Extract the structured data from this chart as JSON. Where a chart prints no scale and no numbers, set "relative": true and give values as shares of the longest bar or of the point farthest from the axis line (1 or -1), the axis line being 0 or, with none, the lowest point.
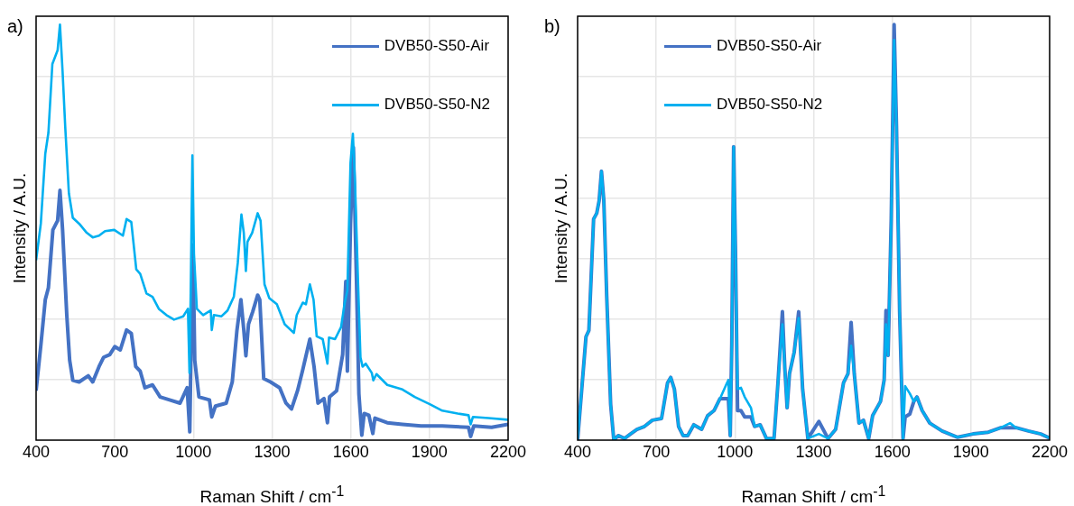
{
  "chart_data": [
    {
      "type": "line",
      "title": "a)",
      "xlabel": "Raman Shift / cm$^{-1}$",
      "ylabel": "Intensity / A.U.",
      "relative": true,
      "xlim": [
        400,
        2200
      ],
      "xticks": [
        400,
        700,
        1000,
        1300,
        1600,
        1900,
        2200
      ],
      "grid": true,
      "legend": "top right",
      "marker": "none",
      "series": [
        {
          "name": "DVB50-S50-Air",
          "color": "#4472c4",
          "x": [
            400,
            418,
            435,
            447,
            464,
            482,
            491,
            501,
            517,
            528,
            540,
            564,
            599,
            616,
            640,
            657,
            681,
            700,
            721,
            745,
            763,
            780,
            797,
            815,
            844,
            873,
            909,
            949,
            976,
            986,
            993,
            998,
            1005,
            1021,
            1061,
            1070,
            1084,
            1125,
            1148,
            1166,
            1181,
            1192,
            1200,
            1210,
            1226,
            1245,
            1253,
            1268,
            1294,
            1329,
            1353,
            1374,
            1397,
            1417,
            1444,
            1460,
            1475,
            1498,
            1511,
            1519,
            1546,
            1569,
            1581,
            1587,
            1599,
            1610,
            1622,
            1631,
            1642,
            1651,
            1669,
            1684,
            1692,
            1739,
            1797,
            1868,
            1949,
            2049,
            2057,
            2069,
            2137,
            2200
          ],
          "values": [
            0.119,
            0.228,
            0.338,
            0.367,
            0.506,
            0.528,
            0.601,
            0.506,
            0.301,
            0.192,
            0.144,
            0.14,
            0.155,
            0.14,
            0.177,
            0.199,
            0.206,
            0.225,
            0.217,
            0.265,
            0.257,
            0.177,
            0.166,
            0.126,
            0.133,
            0.104,
            0.097,
            0.089,
            0.126,
            0.02,
            0.301,
            0.47,
            0.192,
            0.104,
            0.097,
            0.056,
            0.082,
            0.089,
            0.14,
            0.265,
            0.338,
            0.265,
            0.203,
            0.279,
            0.309,
            0.349,
            0.338,
            0.148,
            0.14,
            0.126,
            0.089,
            0.075,
            0.119,
            0.17,
            0.243,
            0.177,
            0.089,
            0.1,
            0.042,
            0.104,
            0.119,
            0.206,
            0.382,
            0.166,
            0.521,
            0.704,
            0.375,
            0.111,
            0.012,
            0.064,
            0.06,
            0.016,
            0.053,
            0.042,
            0.038,
            0.034,
            0.034,
            0.031,
            0.009,
            0.034,
            0.031,
            0.038
          ]
        },
        {
          "name": "DVB50-S50-N2",
          "color": "#00b0f0",
          "x": [
            400,
            418,
            435,
            447,
            462,
            482,
            491,
            501,
            511,
            525,
            540,
            564,
            593,
            616,
            640,
            663,
            698,
            731,
            745,
            763,
            782,
            797,
            821,
            844,
            868,
            897,
            926,
            961,
            979,
            985,
            990,
            996,
            1002,
            1013,
            1037,
            1066,
            1070,
            1078,
            1107,
            1130,
            1154,
            1169,
            1183,
            1192,
            1200,
            1206,
            1224,
            1245,
            1256,
            1271,
            1289,
            1318,
            1348,
            1383,
            1394,
            1417,
            1429,
            1444,
            1458,
            1470,
            1493,
            1511,
            1517,
            1540,
            1563,
            1577,
            1587,
            1599,
            1608,
            1616,
            1628,
            1637,
            1645,
            1657,
            1680,
            1686,
            1698,
            1739,
            1797,
            1844,
            1903,
            1949,
            2008,
            2049,
            2057,
            2066,
            2125,
            2200
          ],
          "values": [
            0.433,
            0.521,
            0.689,
            0.74,
            0.905,
            0.938,
            1,
            0.887,
            0.755,
            0.594,
            0.535,
            0.521,
            0.499,
            0.488,
            0.492,
            0.503,
            0.506,
            0.492,
            0.532,
            0.525,
            0.411,
            0.4,
            0.353,
            0.345,
            0.316,
            0.301,
            0.29,
            0.298,
            0.316,
            0.162,
            0.375,
            0.685,
            0.448,
            0.316,
            0.301,
            0.312,
            0.265,
            0.301,
            0.298,
            0.312,
            0.345,
            0.426,
            0.543,
            0.499,
            0.407,
            0.477,
            0.499,
            0.546,
            0.528,
            0.375,
            0.342,
            0.327,
            0.279,
            0.258,
            0.301,
            0.331,
            0.327,
            0.375,
            0.338,
            0.25,
            0.243,
            0.184,
            0.247,
            0.243,
            0.272,
            0.331,
            0.36,
            0.667,
            0.737,
            0.623,
            0.375,
            0.199,
            0.177,
            0.184,
            0.162,
            0.144,
            0.159,
            0.133,
            0.122,
            0.104,
            0.086,
            0.071,
            0.064,
            0.06,
            0.038,
            0.056,
            0.053,
            0.049
          ]
        }
      ]
    },
    {
      "type": "line",
      "title": "b)",
      "xlabel": "Raman Shift / cm$^{-1}$",
      "ylabel": "Intensity / A.U.",
      "relative": true,
      "xlim": [
        400,
        2200
      ],
      "xticks": [
        400,
        700,
        1000,
        1300,
        1600,
        1900,
        2200
      ],
      "grid": true,
      "legend": "top left",
      "marker": "none",
      "series": [
        {
          "name": "DVB50-S50-Air",
          "color": "#4472c4",
          "x": [
            400,
            432,
            443,
            461,
            473,
            482,
            491,
            500,
            511,
            526,
            538,
            555,
            579,
            602,
            626,
            655,
            685,
            720,
            743,
            755,
            769,
            785,
            802,
            820,
            843,
            873,
            896,
            920,
            943,
            967,
            975,
            982,
            988,
            995,
            1002,
            1010,
            1023,
            1037,
            1061,
            1075,
            1096,
            1120,
            1149,
            1164,
            1181,
            1190,
            1199,
            1208,
            1226,
            1243,
            1258,
            1278,
            1320,
            1355,
            1384,
            1414,
            1431,
            1443,
            1455,
            1473,
            1490,
            1510,
            1525,
            1555,
            1569,
            1576,
            1584,
            1596,
            1607,
            1616,
            1628,
            1641,
            1649,
            1667,
            1682,
            1694,
            1714,
            1743,
            1790,
            1849,
            1908,
            1966,
            2014,
            2049,
            2072,
            2119,
            2166,
            2200
          ],
          "values": [
            0,
            0.249,
            0.264,
            0.532,
            0.546,
            0.576,
            0.647,
            0.576,
            0.346,
            0.086,
            0,
            0.011,
            0.004,
            0.015,
            0.026,
            0.033,
            0.048,
            0.052,
            0.138,
            0.151,
            0.123,
            0.033,
            0.011,
            0.011,
            0.037,
            0.026,
            0.059,
            0.071,
            0.1,
            0.1,
            0.1,
            0.011,
            0.234,
            0.706,
            0.457,
            0.071,
            0.071,
            0.056,
            0.056,
            0.033,
            0.037,
            0.004,
            0.004,
            0.138,
            0.309,
            0.175,
            0.078,
            0.16,
            0.212,
            0.309,
            0.123,
            0.004,
            0.045,
            0.004,
            0.026,
            0.138,
            0.16,
            0.283,
            0.16,
            0.041,
            0.048,
            0.004,
            0.059,
            0.093,
            0.145,
            0.312,
            0.204,
            0.532,
            1,
            0.755,
            0.309,
            0.004,
            0.056,
            0.063,
            0.093,
            0.104,
            0.071,
            0.041,
            0.022,
            0.007,
            0.015,
            0.019,
            0.03,
            0.03,
            0.03,
            0.022,
            0.015,
            0.005
          ]
        },
        {
          "name": "DVB50-S50-N2",
          "color": "#00b0f0",
          "x": [
            400,
            432,
            443,
            461,
            473,
            482,
            491,
            500,
            511,
            526,
            538,
            555,
            579,
            602,
            626,
            655,
            685,
            720,
            743,
            755,
            769,
            785,
            802,
            820,
            843,
            873,
            896,
            920,
            943,
            967,
            975,
            982,
            988,
            995,
            1002,
            1010,
            1023,
            1037,
            1061,
            1075,
            1096,
            1120,
            1149,
            1164,
            1181,
            1190,
            1199,
            1208,
            1226,
            1243,
            1258,
            1278,
            1320,
            1355,
            1384,
            1414,
            1431,
            1443,
            1455,
            1473,
            1490,
            1510,
            1525,
            1555,
            1569,
            1576,
            1584,
            1596,
            1607,
            1616,
            1628,
            1641,
            1649,
            1667,
            1682,
            1694,
            1714,
            1743,
            1790,
            1849,
            1908,
            1966,
            2014,
            2049,
            2072,
            2119,
            2166,
            2200
          ],
          "values": [
            0,
            0.249,
            0.264,
            0.532,
            0.546,
            0.576,
            0.647,
            0.576,
            0.346,
            0.086,
            0,
            0.011,
            0.004,
            0.015,
            0.026,
            0.033,
            0.048,
            0.052,
            0.138,
            0.151,
            0.123,
            0.033,
            0.011,
            0.011,
            0.037,
            0.026,
            0.059,
            0.071,
            0.1,
            0.134,
            0.145,
            0.011,
            0.234,
            0.706,
            0.457,
            0.123,
            0.126,
            0.104,
            0.078,
            0.033,
            0.037,
            0.004,
            0.004,
            0.138,
            0.279,
            0.175,
            0.078,
            0.16,
            0.212,
            0.294,
            0.123,
            0.004,
            0.015,
            0.004,
            0.026,
            0.138,
            0.16,
            0.227,
            0.16,
            0.041,
            0.048,
            0.004,
            0.059,
            0.093,
            0.145,
            0.279,
            0.204,
            0.532,
            0.963,
            0.755,
            0.309,
            0.004,
            0.13,
            0.112,
            0.093,
            0.104,
            0.071,
            0.041,
            0.022,
            0.007,
            0.015,
            0.019,
            0.03,
            0.041,
            0.03,
            0.022,
            0.015,
            0.005
          ]
        }
      ]
    }
  ]
}
